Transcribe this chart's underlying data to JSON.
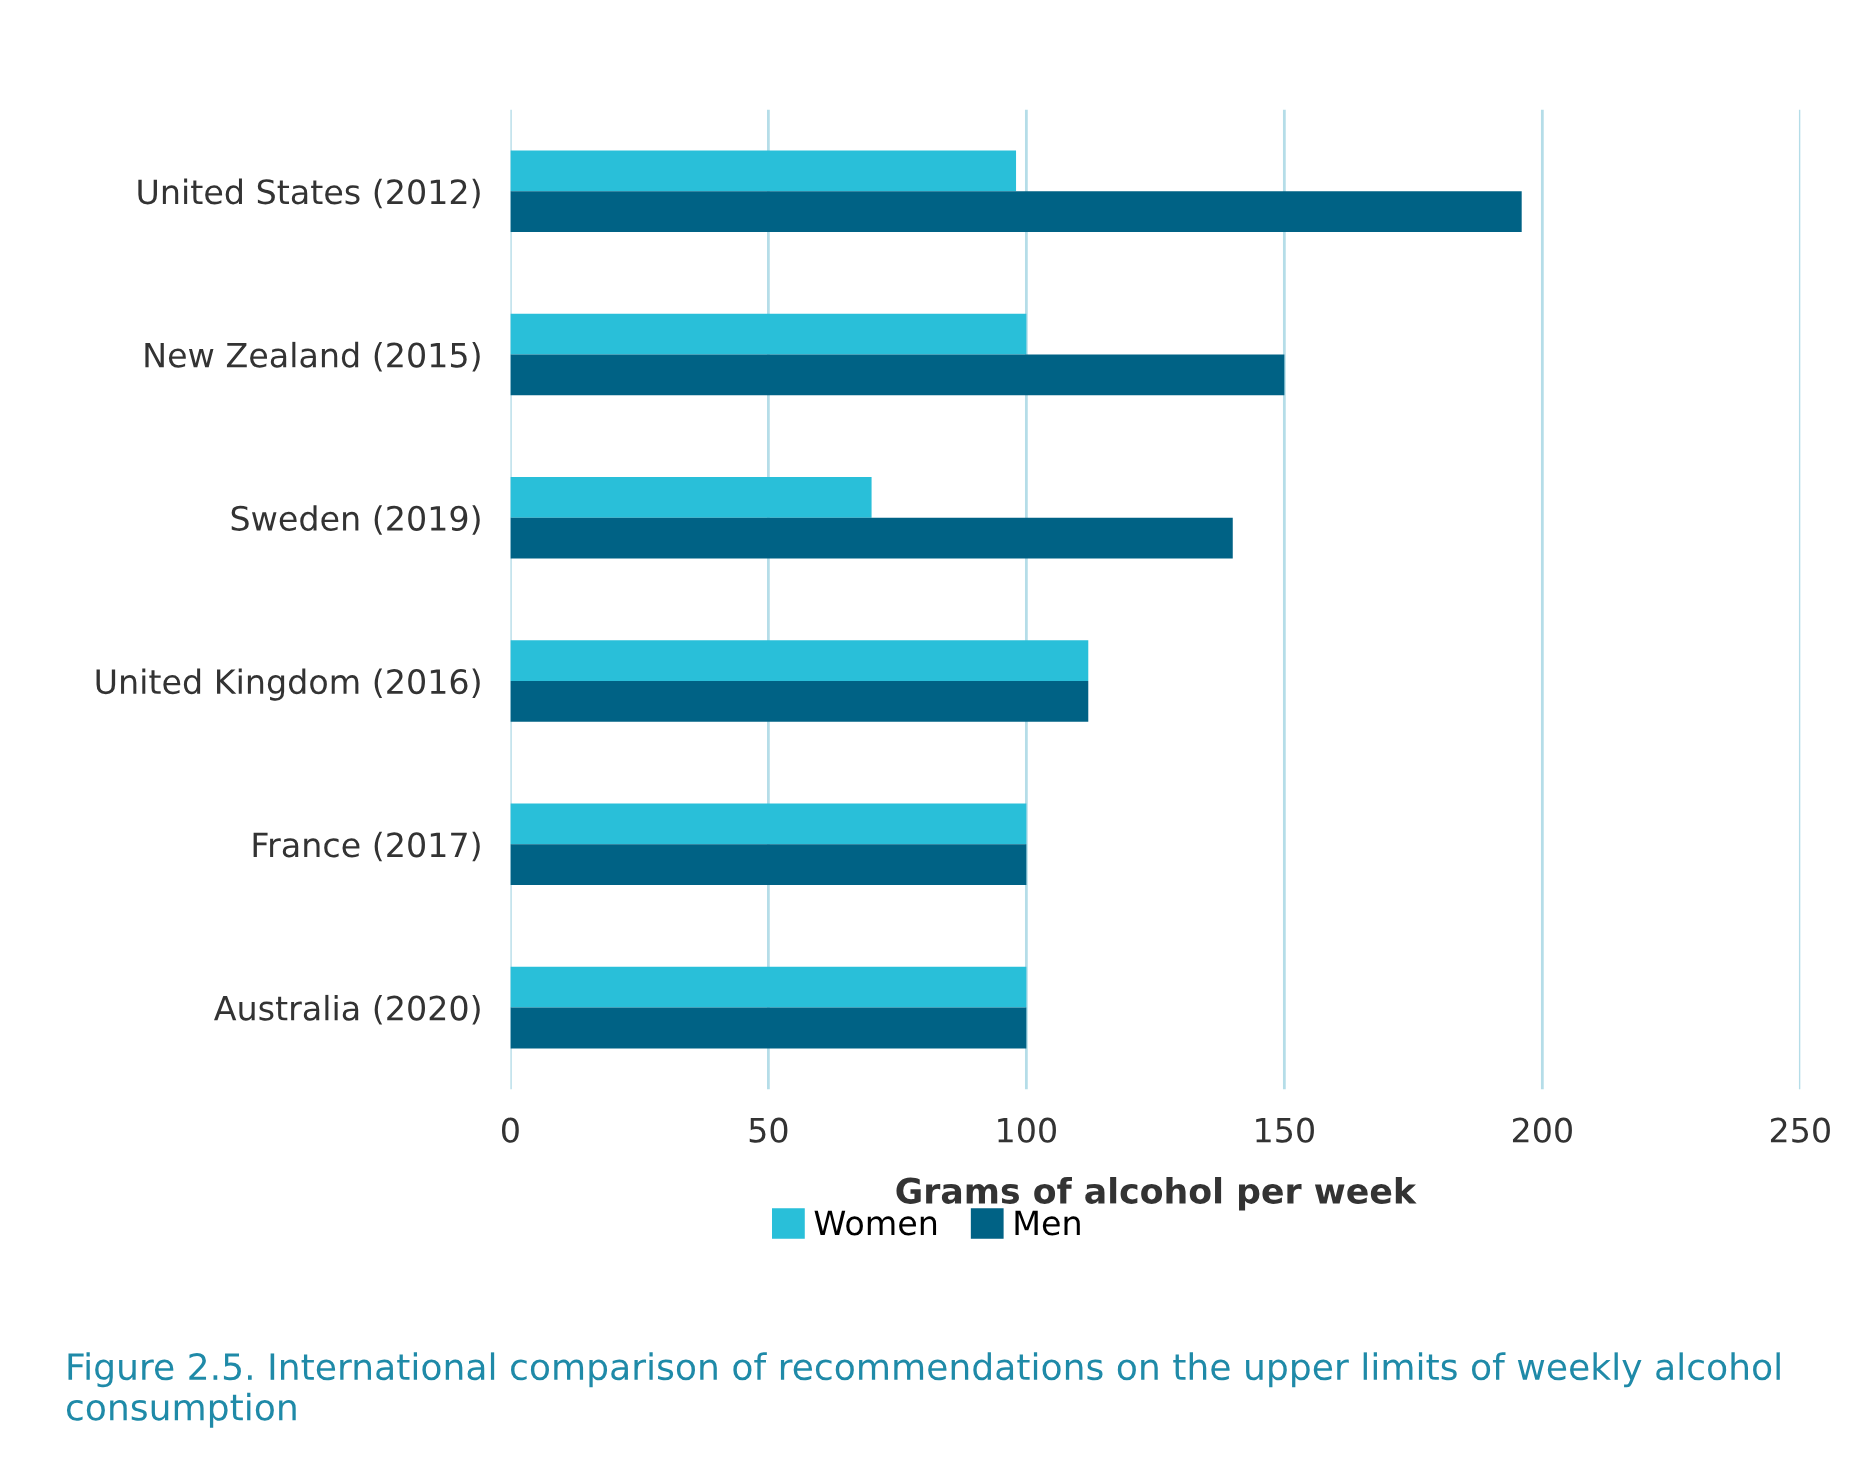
{
  "chart_data": {
    "type": "bar",
    "orientation": "horizontal",
    "xlabel": "Grams of alcohol per week",
    "categories": [
      "United States (2012)",
      "New Zealand (2015)",
      "Sweden (2019)",
      "United Kingdom (2016)",
      "France (2017)",
      "Australia (2020)"
    ],
    "series": [
      {
        "name": "Women",
        "color": "#29bfd9",
        "values": [
          98,
          100,
          70,
          112,
          100,
          100
        ]
      },
      {
        "name": "Men",
        "color": "#006285",
        "values": [
          196,
          150,
          140,
          112,
          100,
          100
        ]
      }
    ],
    "xlim": [
      0,
      250
    ],
    "xticks": [
      0,
      50,
      100,
      150,
      200,
      250
    ],
    "grid": "x",
    "legend": "bottom",
    "annotations": [
      "Figure 2.5. International comparison of recommendations on the upper limits of weekly alcohol consumption"
    ]
  }
}
